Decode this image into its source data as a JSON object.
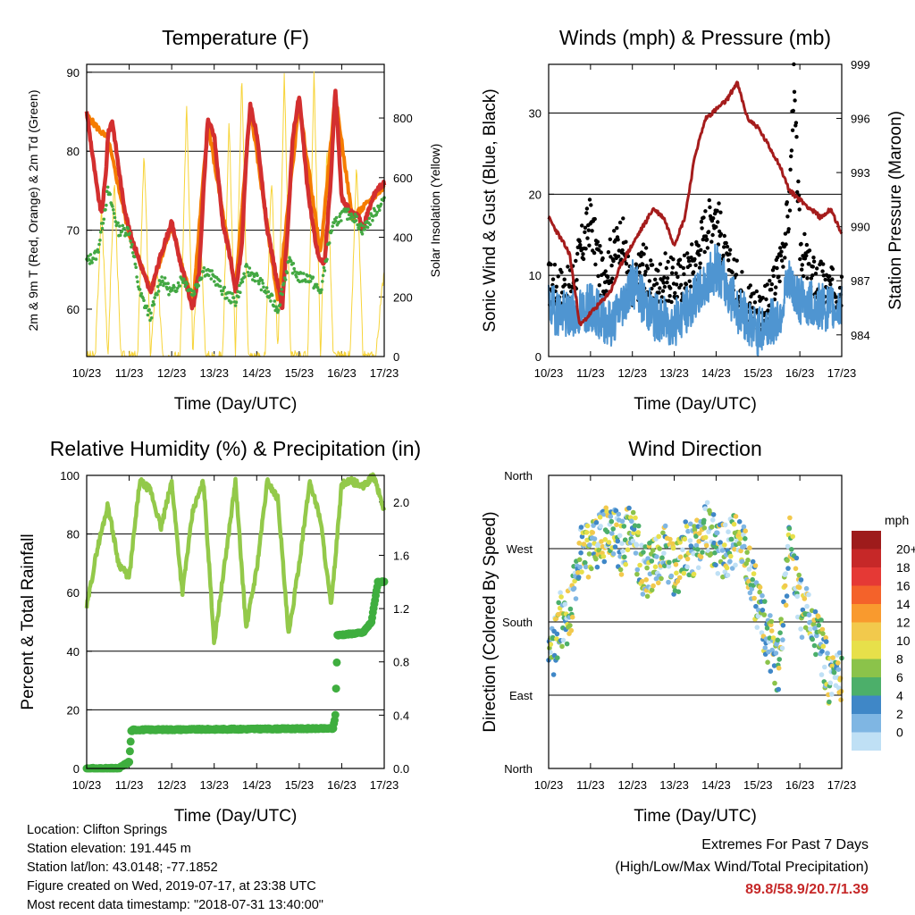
{
  "colors": {
    "temp_red": "#d32f2f",
    "temp_orange": "#f57c00",
    "dewpoint_green": "#43a843",
    "solar_yellow": "#f7d43a",
    "wind_blue": "#4f95d1",
    "gust_black": "#000000",
    "pressure_maroon": "#a51c1c",
    "rh_green": "#93c94a",
    "precip_green": "#3fae3f",
    "extremes_red": "#c62828"
  },
  "x_tick_labels": [
    "10/23",
    "11/23",
    "12/23",
    "13/23",
    "14/23",
    "15/23",
    "16/23",
    "17/23"
  ],
  "chart_data": [
    {
      "type": "line",
      "title": "Temperature (F)",
      "xlabel": "Time (Day/UTC)",
      "ylabel": "2m & 9m T (Red, Orange) & 2m Td (Green)",
      "y2label": "Solar Insolation (Yellow)",
      "x_ticks": [
        "10/23",
        "11/23",
        "12/23",
        "13/23",
        "14/23",
        "15/23",
        "16/23",
        "17/23"
      ],
      "ylim": [
        54,
        91
      ],
      "y_ticks": [
        60,
        70,
        80,
        90
      ],
      "y2lim": [
        0,
        980
      ],
      "y2_ticks": [
        0,
        200,
        400,
        600,
        800
      ],
      "series": [
        {
          "role": "2m_temp",
          "color": "#d32f2f",
          "x": [
            0,
            0.1,
            0.25,
            0.35,
            0.45,
            0.5,
            0.6,
            0.7,
            0.85,
            1.0,
            1.25,
            1.5,
            1.75,
            2.0,
            2.2,
            2.4,
            2.5,
            2.65,
            2.75,
            2.85,
            3.0,
            3.2,
            3.4,
            3.5,
            3.65,
            3.75,
            3.85,
            4.0,
            4.25,
            4.5,
            4.6,
            4.75,
            4.85,
            5.0,
            5.2,
            5.4,
            5.5,
            5.6,
            5.75,
            5.85,
            6.0,
            6.25,
            6.4,
            6.5,
            6.6,
            6.8,
            7.0
          ],
          "values": [
            85,
            81,
            75,
            72,
            77,
            82,
            84,
            80,
            74,
            70,
            66,
            62,
            67,
            71,
            66,
            62,
            60,
            65,
            75,
            84,
            82,
            71,
            66,
            62,
            68,
            79,
            86,
            82,
            70,
            63,
            60,
            72,
            82,
            87,
            75,
            68,
            66,
            66,
            77,
            88,
            74,
            72,
            72,
            70,
            72,
            75,
            76
          ]
        },
        {
          "role": "9m_temp",
          "color": "#f57c00",
          "x": [
            0,
            0.5,
            1.0,
            1.5,
            2.0,
            2.5,
            2.85,
            3.5,
            3.85,
            4.5,
            5.0,
            5.5,
            5.85,
            6.25,
            7.0
          ],
          "values": [
            84.5,
            81.5,
            69.5,
            62.5,
            70.5,
            60.5,
            83.5,
            62.5,
            85.5,
            61,
            86,
            67,
            87,
            71.5,
            75.5
          ]
        },
        {
          "role": "2m_dewpoint",
          "color": "#43a843",
          "x": [
            0,
            0.25,
            0.5,
            0.75,
            1.0,
            1.25,
            1.5,
            1.75,
            2.0,
            2.25,
            2.5,
            2.75,
            3.0,
            3.25,
            3.5,
            3.75,
            4.0,
            4.25,
            4.5,
            4.75,
            5.0,
            5.25,
            5.5,
            5.75,
            6.0,
            6.25,
            6.5,
            6.75,
            7.0
          ],
          "values": [
            66,
            67,
            75,
            70,
            70,
            62,
            59,
            64,
            62,
            64,
            62,
            65,
            64,
            62,
            61,
            65,
            64,
            62,
            60,
            66,
            64,
            64,
            62,
            70,
            72,
            72,
            70,
            72,
            74
          ]
        },
        {
          "role": "solar_insolation",
          "color": "#f7d43a",
          "axis": "right",
          "x": [
            0,
            0.2,
            0.35,
            0.5,
            0.65,
            0.8,
            1.0,
            1.2,
            1.35,
            1.5,
            1.65,
            1.8,
            2.0,
            2.2,
            2.35,
            2.5,
            2.65,
            2.8,
            3.0,
            3.2,
            3.35,
            3.5,
            3.65,
            3.8,
            4.0,
            4.2,
            4.35,
            4.5,
            4.65,
            4.8,
            5.0,
            5.2,
            5.35,
            5.5,
            5.65,
            5.8,
            6.0,
            6.2,
            6.35,
            6.5,
            6.65,
            6.8,
            7.0
          ],
          "values": [
            0,
            0,
            500,
            0,
            600,
            0,
            0,
            0,
            700,
            0,
            300,
            0,
            0,
            0,
            850,
            0,
            500,
            0,
            0,
            0,
            800,
            0,
            950,
            0,
            0,
            0,
            600,
            0,
            960,
            0,
            0,
            0,
            950,
            0,
            700,
            0,
            0,
            0,
            650,
            0,
            0,
            0,
            300
          ]
        }
      ]
    },
    {
      "type": "line",
      "title": "Winds (mph) & Pressure (mb)",
      "xlabel": "Time (Day/UTC)",
      "ylabel": "Sonic Wind & Gust (Blue, Black)",
      "y2label": "Station Pressure (Maroon)",
      "x_ticks": [
        "10/23",
        "11/23",
        "12/23",
        "13/23",
        "14/23",
        "15/23",
        "16/23",
        "17/23"
      ],
      "ylim": [
        0,
        36
      ],
      "y_ticks": [
        0,
        10,
        20,
        30
      ],
      "y2lim": [
        982.8,
        999
      ],
      "y2_ticks": [
        984,
        987,
        990,
        993,
        996,
        999
      ],
      "series": [
        {
          "role": "sonic_wind",
          "color": "#4f95d1",
          "x": [
            0,
            0.5,
            1.0,
            1.5,
            2.0,
            2.5,
            3.0,
            3.5,
            3.75,
            4.0,
            4.5,
            5.0,
            5.5,
            5.75,
            6.0,
            6.5,
            7.0
          ],
          "values": [
            6,
            5,
            6,
            4,
            9,
            5,
            4,
            7,
            9,
            11,
            6,
            3,
            5,
            9,
            7,
            6,
            6
          ]
        },
        {
          "role": "gust",
          "color": "#000000",
          "x": [
            0,
            0.5,
            1.0,
            1.25,
            1.5,
            1.75,
            2.0,
            2.25,
            2.5,
            2.75,
            3.0,
            3.25,
            3.5,
            3.75,
            4.0,
            4.25,
            4.5,
            4.75,
            5.0,
            5.25,
            5.5,
            5.75,
            5.85,
            6.0,
            6.25,
            6.5,
            6.75,
            7.0
          ],
          "values": [
            9,
            8,
            17,
            10,
            12,
            15,
            7,
            12,
            8,
            10,
            9,
            10,
            12,
            16,
            18,
            11,
            9,
            7,
            6,
            6,
            11,
            18,
            34,
            14,
            10,
            9,
            8,
            9
          ]
        },
        {
          "role": "station_pressure",
          "color": "#a51c1c",
          "axis": "right",
          "x": [
            0,
            0.25,
            0.5,
            0.75,
            1.0,
            1.25,
            1.5,
            1.75,
            2.0,
            2.25,
            2.5,
            2.75,
            3.0,
            3.25,
            3.5,
            3.75,
            4.0,
            4.25,
            4.5,
            4.75,
            5.0,
            5.25,
            5.5,
            5.75,
            6.0,
            6.25,
            6.5,
            6.75,
            7.0
          ],
          "values": [
            990.5,
            989.5,
            988.5,
            984.5,
            985.2,
            985.8,
            986.5,
            988,
            989,
            990,
            991,
            990.5,
            989,
            990.5,
            994,
            996,
            996.5,
            997,
            998,
            996,
            995.5,
            994.5,
            993.5,
            992,
            991.5,
            991,
            990.5,
            991,
            989.5
          ]
        }
      ]
    },
    {
      "type": "line",
      "title": "Relative Humidity (%) & Precipitation (in)",
      "xlabel": "Time (Day/UTC)",
      "ylabel": "Percent & Total Rainfall",
      "x_ticks": [
        "10/23",
        "11/23",
        "12/23",
        "13/23",
        "14/23",
        "15/23",
        "16/23",
        "17/23"
      ],
      "ylim": [
        0,
        100
      ],
      "y_ticks": [
        0,
        20,
        40,
        60,
        80,
        100
      ],
      "y2lim": [
        0,
        2.2
      ],
      "y2_ticks": [
        "0.0",
        "0.4",
        "0.8",
        "1.2",
        "1.6",
        "2.0"
      ],
      "series": [
        {
          "role": "relative_humidity",
          "color": "#93c94a",
          "x": [
            0,
            0.25,
            0.5,
            0.75,
            1.0,
            1.25,
            1.5,
            1.75,
            2.0,
            2.25,
            2.5,
            2.75,
            3.0,
            3.25,
            3.5,
            3.75,
            4.0,
            4.25,
            4.5,
            4.75,
            5.0,
            5.25,
            5.5,
            5.75,
            6.0,
            6.25,
            6.5,
            6.75,
            7.0
          ],
          "values": [
            55,
            75,
            90,
            70,
            65,
            98,
            95,
            82,
            98,
            60,
            88,
            98,
            43,
            70,
            98,
            48,
            68,
            98,
            92,
            45,
            70,
            98,
            85,
            55,
            97,
            98,
            96,
            100,
            88
          ]
        },
        {
          "role": "total_precipitation",
          "color": "#3fae3f",
          "axis": "right",
          "x": [
            0,
            0.75,
            1.0,
            1.05,
            1.1,
            5.8,
            5.85,
            5.9,
            6.5,
            6.7,
            6.85,
            7.0
          ],
          "values": [
            0,
            0,
            0.05,
            0.28,
            0.29,
            0.3,
            0.4,
            1.0,
            1.02,
            1.1,
            1.4,
            1.4
          ]
        }
      ]
    },
    {
      "type": "scatter",
      "title": "Wind Direction",
      "xlabel": "Time (Day/UTC)",
      "ylabel": "Direction (Colored By Speed)",
      "x_ticks": [
        "10/23",
        "11/23",
        "12/23",
        "13/23",
        "14/23",
        "15/23",
        "16/23",
        "17/23"
      ],
      "y_ticks": [
        "North",
        "East",
        "South",
        "West",
        "North"
      ],
      "ylim": [
        0,
        360
      ],
      "colorbar": {
        "title": "mph",
        "labels": [
          "20+",
          "18",
          "16",
          "14",
          "12",
          "10",
          "8",
          "6",
          "4",
          "2",
          "0"
        ],
        "colors": [
          "#9e1b1b",
          "#c62828",
          "#e53935",
          "#f4622a",
          "#f99a2e",
          "#f2c94c",
          "#e7e04a",
          "#8bc34a",
          "#4caf6a",
          "#3f87c7",
          "#7fb6e3",
          "#bfe0f5"
        ]
      },
      "series": [
        {
          "role": "direction_path",
          "x": [
            0,
            0.25,
            0.5,
            0.75,
            1.0,
            1.25,
            1.5,
            1.75,
            2.0,
            2.25,
            2.5,
            2.75,
            3.0,
            3.25,
            3.5,
            3.75,
            4.0,
            4.25,
            4.5,
            4.75,
            5.0,
            5.25,
            5.5,
            5.75,
            6.0,
            6.25,
            6.5,
            6.75,
            7.0
          ],
          "values": [
            120,
            180,
            190,
            270,
            270,
            280,
            300,
            270,
            300,
            240,
            250,
            270,
            240,
            270,
            270,
            300,
            270,
            270,
            280,
            260,
            200,
            160,
            120,
            280,
            200,
            180,
            150,
            100,
            110
          ]
        }
      ]
    }
  ],
  "meta": {
    "location": "Location: Clifton Springs",
    "elevation": "Station elevation: 191.445 m",
    "latlon": "Station lat/lon: 43.0148; -77.1852",
    "created": "Figure created on Wed, 2019-07-17, at 23:38 UTC",
    "recent": "Most recent data timestamp: \"2018-07-31 13:40:00\""
  },
  "extremes": {
    "title": "Extremes For Past 7 Days",
    "subtitle": "(High/Low/Max Wind/Total Precipitation)",
    "values": "89.8/58.9/20.7/1.39"
  }
}
